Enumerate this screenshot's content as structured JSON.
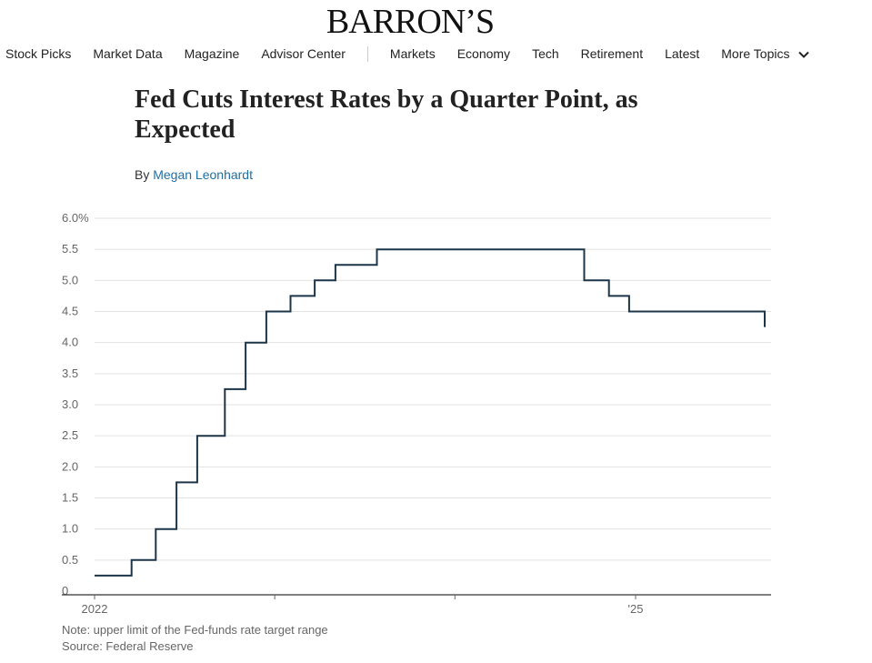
{
  "header": {
    "logo_text": "BARRON’S"
  },
  "nav": {
    "items": [
      "Stock Picks",
      "Market Data",
      "Magazine",
      "Advisor Center"
    ],
    "items2": [
      "Markets",
      "Economy",
      "Tech",
      "Retirement",
      "Latest"
    ],
    "more_label": "More Topics",
    "icons": [
      "chevron-down-icon"
    ]
  },
  "article": {
    "headline": "Fed Cuts Interest Rates by a Quarter Point, as Expected",
    "by_label": "By",
    "author": "Megan Leonhardt"
  },
  "chart_data": {
    "type": "line",
    "title": "",
    "xlabel": "",
    "ylabel": "",
    "ylim": [
      0,
      6.0
    ],
    "yticks": [
      "6.0%",
      "5.5",
      "5.0",
      "4.5",
      "4.0",
      "3.5",
      "3.0",
      "2.5",
      "2.0",
      "1.5",
      "1.0",
      "0.5",
      "0"
    ],
    "ytick_values": [
      6.0,
      5.5,
      5.0,
      4.5,
      4.0,
      3.5,
      3.0,
      2.5,
      2.0,
      1.5,
      1.0,
      0.5,
      0
    ],
    "xlim": [
      "2021-12-01",
      "2024-12-31"
    ],
    "xtick_labels": [
      {
        "label": "2022",
        "x": "2022-01-01"
      },
      {
        "label": "'25",
        "x": "2025-01-01"
      }
    ],
    "xtick_marks": [
      "2022-01-01",
      "2023-01-01",
      "2024-01-01",
      "2025-01-01"
    ],
    "grid": true,
    "line_color": "#1d3549",
    "series": [
      {
        "name": "",
        "x": [
          "2022-01-01",
          "2022-03-17",
          "2022-05-05",
          "2022-06-16",
          "2022-07-28",
          "2022-09-22",
          "2022-11-03",
          "2022-12-15",
          "2023-02-02",
          "2023-03-23",
          "2023-05-04",
          "2023-07-27",
          "2024-09-19",
          "2024-11-08",
          "2024-12-19",
          "2025-12-10"
        ],
        "y": [
          0.25,
          0.5,
          1.0,
          1.75,
          2.5,
          3.25,
          4.0,
          4.5,
          4.75,
          5.0,
          5.25,
          5.5,
          5.0,
          4.75,
          4.5,
          4.25
        ]
      }
    ]
  },
  "notes": {
    "note": "Note: upper limit of the Fed-funds rate target range",
    "source": "Source: Federal Reserve"
  }
}
